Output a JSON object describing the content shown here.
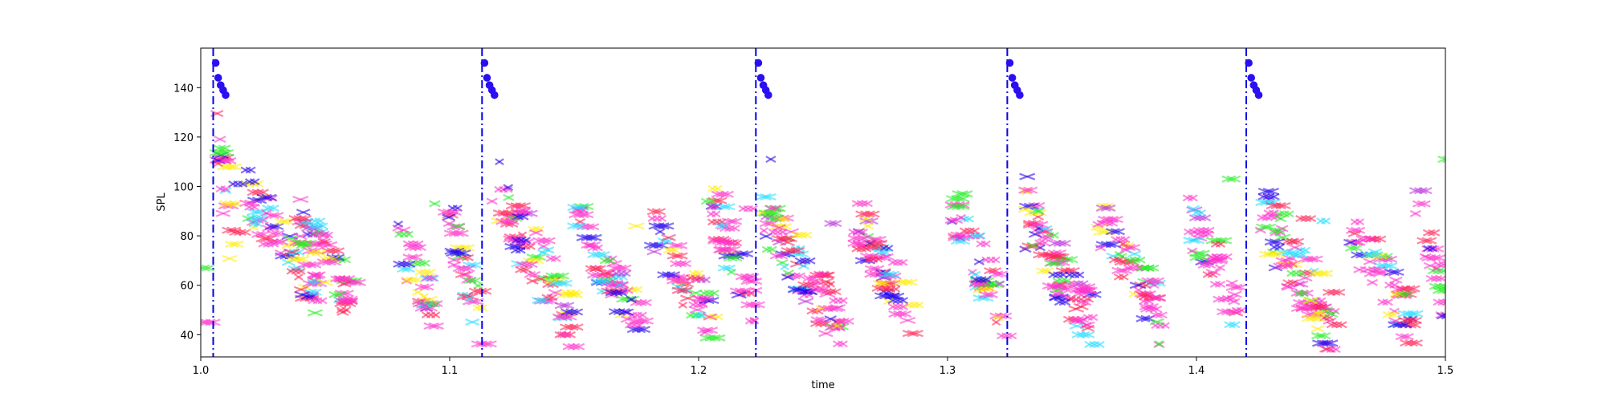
{
  "chart_data": {
    "type": "scatter",
    "xlabel": "time",
    "ylabel": "SPL",
    "xlim": [
      1.0,
      1.5
    ],
    "ylim": [
      31,
      156
    ],
    "x_ticks": [
      1.0,
      1.1,
      1.2,
      1.3,
      1.4,
      1.5
    ],
    "x_tick_labels": [
      "1.0",
      "1.1",
      "1.2",
      "1.3",
      "1.4",
      "1.5"
    ],
    "y_ticks": [
      40,
      60,
      80,
      100,
      120,
      140
    ],
    "y_tick_labels": [
      "40",
      "60",
      "80",
      "100",
      "120",
      "140"
    ],
    "grid": false,
    "vertical_lines": {
      "style": "dash-dot",
      "color": "#0000ee",
      "x": [
        1.005,
        1.113,
        1.223,
        1.324,
        1.42
      ]
    },
    "onset_markers": {
      "marker": "circle",
      "color": "#2a0ff0",
      "points": [
        [
          1.006,
          150
        ],
        [
          1.007,
          144
        ],
        [
          1.008,
          141
        ],
        [
          1.009,
          139
        ],
        [
          1.01,
          137
        ],
        [
          1.114,
          150
        ],
        [
          1.115,
          144
        ],
        [
          1.116,
          141
        ],
        [
          1.117,
          139
        ],
        [
          1.118,
          137
        ],
        [
          1.224,
          150
        ],
        [
          1.225,
          144
        ],
        [
          1.226,
          141
        ],
        [
          1.227,
          139
        ],
        [
          1.228,
          137
        ],
        [
          1.325,
          150
        ],
        [
          1.326,
          144
        ],
        [
          1.327,
          141
        ],
        [
          1.328,
          139
        ],
        [
          1.329,
          137
        ],
        [
          1.421,
          150
        ],
        [
          1.422,
          144
        ],
        [
          1.423,
          141
        ],
        [
          1.424,
          139
        ],
        [
          1.425,
          137
        ]
      ]
    },
    "palette": [
      "#ff33cc",
      "#ff2255",
      "#22ee22",
      "#22ddff",
      "#ffee00",
      "#2200ee",
      "#bb33dd"
    ],
    "seed": 20240,
    "clusters": [
      {
        "x": 1.006,
        "dx": 0.008,
        "y": 98,
        "dy": 60,
        "n": 20
      },
      {
        "x": 1.018,
        "dx": 0.028,
        "y": 78,
        "dy": 40,
        "n": 60
      },
      {
        "x": 1.04,
        "dx": 0.02,
        "y": 70,
        "dy": 35,
        "n": 40
      },
      {
        "x": 1.075,
        "dx": 0.018,
        "y": 68,
        "dy": 36,
        "n": 30
      },
      {
        "x": 1.098,
        "dx": 0.014,
        "y": 68,
        "dy": 44,
        "n": 30
      },
      {
        "x": 1.118,
        "dx": 0.03,
        "y": 72,
        "dy": 50,
        "n": 60
      },
      {
        "x": 1.15,
        "dx": 0.025,
        "y": 66,
        "dy": 40,
        "n": 50
      },
      {
        "x": 1.18,
        "dx": 0.025,
        "y": 64,
        "dy": 40,
        "n": 40
      },
      {
        "x": 1.205,
        "dx": 0.018,
        "y": 70,
        "dy": 46,
        "n": 35
      },
      {
        "x": 1.225,
        "dx": 0.032,
        "y": 66,
        "dy": 46,
        "n": 70
      },
      {
        "x": 1.262,
        "dx": 0.024,
        "y": 66,
        "dy": 40,
        "n": 50
      },
      {
        "x": 1.3,
        "dx": 0.022,
        "y": 70,
        "dy": 44,
        "n": 40
      },
      {
        "x": 1.33,
        "dx": 0.028,
        "y": 66,
        "dy": 46,
        "n": 70
      },
      {
        "x": 1.36,
        "dx": 0.025,
        "y": 66,
        "dy": 40,
        "n": 50
      },
      {
        "x": 1.395,
        "dx": 0.022,
        "y": 70,
        "dy": 46,
        "n": 35
      },
      {
        "x": 1.425,
        "dx": 0.03,
        "y": 66,
        "dy": 50,
        "n": 70
      },
      {
        "x": 1.46,
        "dx": 0.025,
        "y": 66,
        "dy": 40,
        "n": 45
      },
      {
        "x": 1.488,
        "dx": 0.012,
        "y": 70,
        "dy": 40,
        "n": 18
      }
    ],
    "highlights": [
      {
        "x": 1.013,
        "y": 101,
        "c": "#2200ee"
      },
      {
        "x": 1.12,
        "y": 110,
        "c": "#2200ee"
      },
      {
        "x": 1.229,
        "y": 111,
        "c": "#2200ee"
      },
      {
        "x": 1.332,
        "y": 104,
        "c": "#2200ee"
      },
      {
        "x": 1.428,
        "y": 98,
        "c": "#2200ee"
      },
      {
        "x": 1.008,
        "y": 99,
        "c": "#ff33cc"
      },
      {
        "x": 1.094,
        "y": 93,
        "c": "#22ee22"
      },
      {
        "x": 1.117,
        "y": 94,
        "c": "#ff33cc"
      },
      {
        "x": 1.203,
        "y": 94,
        "c": "#22ee22"
      },
      {
        "x": 1.218,
        "y": 91,
        "c": "#ff33cc"
      },
      {
        "x": 1.305,
        "y": 97,
        "c": "#22ee22"
      },
      {
        "x": 1.413,
        "y": 103,
        "c": "#22ee22"
      },
      {
        "x": 1.253,
        "y": 85,
        "c": "#bb33dd"
      },
      {
        "x": 1.038,
        "y": 87,
        "c": "#ff2255"
      },
      {
        "x": 1.045,
        "y": 84,
        "c": "#22ddff"
      },
      {
        "x": 1.15,
        "y": 84,
        "c": "#22ddff"
      },
      {
        "x": 1.175,
        "y": 84,
        "c": "#ffee00"
      },
      {
        "x": 1.268,
        "y": 84,
        "c": "#ffee00"
      },
      {
        "x": 1.442,
        "y": 87,
        "c": "#ff2255"
      },
      {
        "x": 1.45,
        "y": 86,
        "c": "#22ddff"
      },
      {
        "x": 1.488,
        "y": 89,
        "c": "#ff33cc"
      },
      {
        "x": 1.5,
        "y": 111,
        "c": "#22ee22"
      },
      {
        "x": 1.001,
        "y": 67,
        "c": "#22ee22"
      },
      {
        "x": 1.001,
        "y": 45,
        "c": "#ff33cc"
      }
    ]
  }
}
